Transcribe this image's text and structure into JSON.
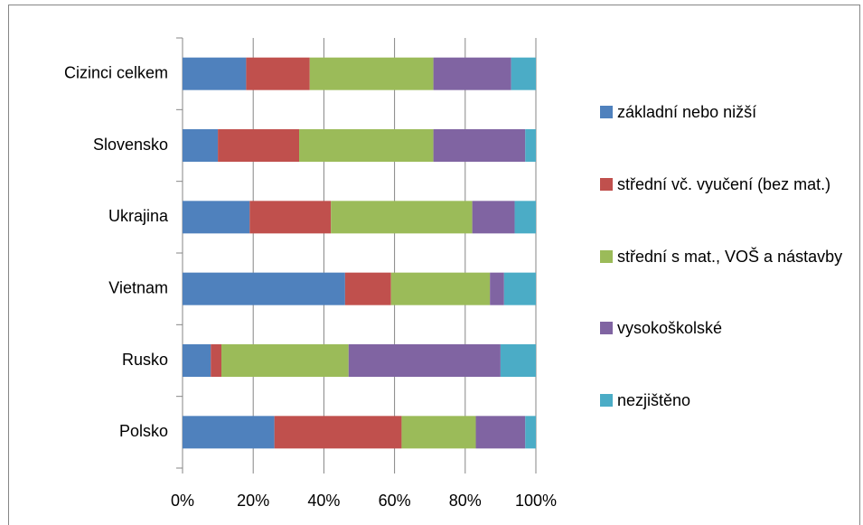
{
  "chart_data": {
    "type": "bar",
    "orientation": "horizontal",
    "stacked": true,
    "categories": [
      "Cizinci celkem",
      "Slovensko",
      "Ukrajina",
      "Vietnam",
      "Rusko",
      "Polsko"
    ],
    "series": [
      {
        "name": "základní nebo nižší",
        "color": "#4f81bd",
        "values": [
          18,
          10,
          19,
          46,
          8,
          26
        ]
      },
      {
        "name": "střední vč. vyučení (bez mat.)",
        "color": "#c0504d",
        "values": [
          18,
          23,
          23,
          13,
          3,
          36
        ]
      },
      {
        "name": "střední s mat., VOŠ a nástavby",
        "color": "#9bbb59",
        "values": [
          35,
          38,
          40,
          28,
          36,
          21
        ]
      },
      {
        "name": "vysokoškolské",
        "color": "#8064a2",
        "values": [
          22,
          26,
          12,
          4,
          43,
          14
        ]
      },
      {
        "name": "nezjištěno",
        "color": "#4bacc6",
        "values": [
          7,
          3,
          6,
          9,
          10,
          3
        ]
      }
    ],
    "xlim": [
      0,
      100
    ],
    "xticks": [
      {
        "value": 0,
        "label": "0%"
      },
      {
        "value": 20,
        "label": "20%"
      },
      {
        "value": 40,
        "label": "40%"
      },
      {
        "value": 60,
        "label": "60%"
      },
      {
        "value": 80,
        "label": "80%"
      },
      {
        "value": 100,
        "label": "100%"
      }
    ],
    "grid": true,
    "legend": "right"
  }
}
